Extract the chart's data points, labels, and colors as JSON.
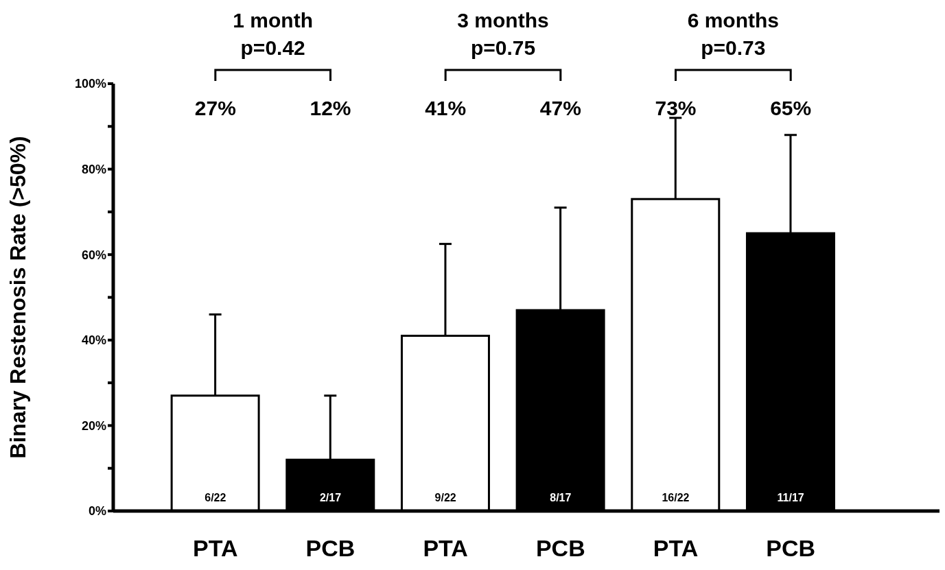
{
  "chart_data": {
    "type": "bar",
    "ylabel": "Binary Restenosis Rate (>50%)",
    "categories": [
      "PTA",
      "PCB",
      "PTA",
      "PCB",
      "PTA",
      "PCB"
    ],
    "values": [
      27,
      12,
      41,
      47,
      73,
      65
    ],
    "colors": [
      "#ffffff",
      "#000000",
      "#ffffff",
      "#000000",
      "#ffffff",
      "#000000"
    ],
    "errors": [
      [
        27,
        46
      ],
      [
        12,
        27
      ],
      [
        41,
        62.5
      ],
      [
        47,
        71
      ],
      [
        73,
        92
      ],
      [
        65,
        88
      ]
    ],
    "ylim": [
      0,
      100
    ],
    "yticks": [
      {
        "value": 0,
        "label": "0%"
      },
      {
        "value": 10,
        "label": null
      },
      {
        "value": 20,
        "label": "20%"
      },
      {
        "value": 30,
        "label": null
      },
      {
        "value": 40,
        "label": "40%"
      },
      {
        "value": 50,
        "label": null
      },
      {
        "value": 60,
        "label": "60%"
      },
      {
        "value": 70,
        "label": null
      },
      {
        "value": 80,
        "label": "80%"
      },
      {
        "value": 90,
        "label": null
      },
      {
        "value": 100,
        "label": "100%"
      }
    ],
    "annotations": [
      "1 month",
      "p=0.42",
      "3 months",
      "p=0.75",
      "6 months",
      "p=0.73",
      "27%",
      "12%",
      "41%",
      "47%",
      "73%",
      "65%",
      "6/22",
      "2/17",
      "9/22",
      "8/17",
      "16/22",
      "11/17"
    ]
  }
}
